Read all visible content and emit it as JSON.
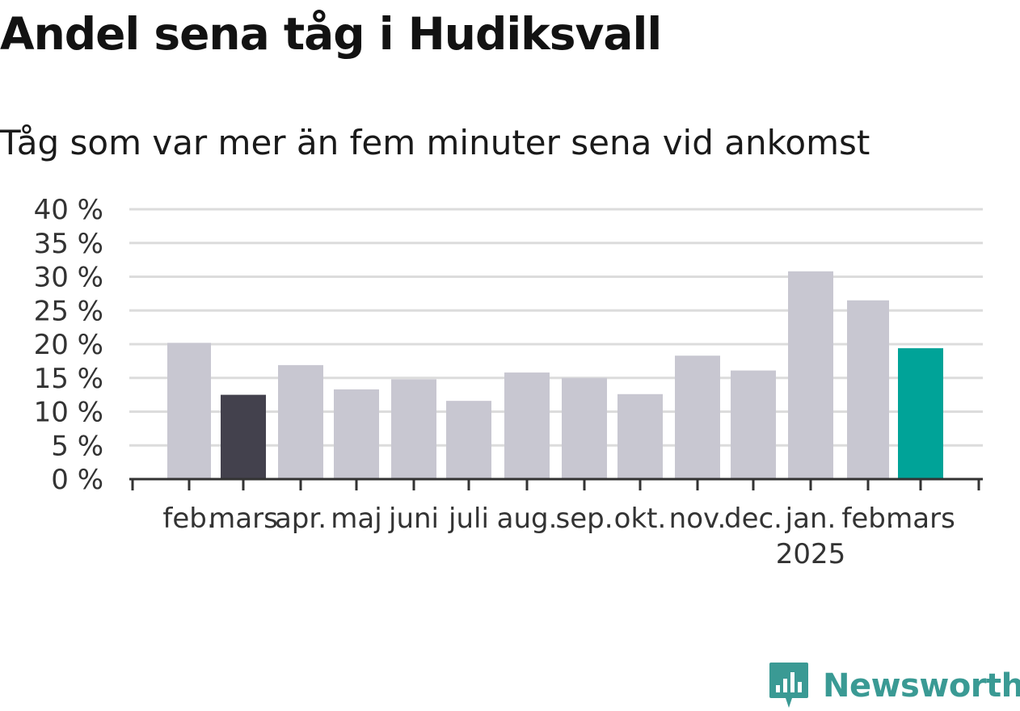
{
  "title": "Andel sena tåg i Hudiksvall",
  "subtitle": "Tåg som var mer än fem minuter sena vid ankomst",
  "logo_text": "Newsworthy",
  "colors": {
    "bar_default": "#c8c7d1",
    "bar_reference": "#43414d",
    "bar_current": "#00a398",
    "gridline": "#dcdcdc",
    "axis": "#333333",
    "logo": "#3a9a94"
  },
  "chart_data": {
    "type": "bar",
    "categories": [
      "feb.",
      "mars",
      "apr.",
      "maj",
      "juni",
      "juli",
      "aug.",
      "sep.",
      "okt.",
      "nov.",
      "dec.",
      "jan.",
      "feb.",
      "mars"
    ],
    "year_labels": [
      {
        "category_index": 11,
        "label": "2025"
      }
    ],
    "values": [
      20.2,
      12.5,
      16.9,
      13.3,
      14.8,
      11.6,
      15.8,
      15.0,
      12.6,
      18.3,
      16.1,
      30.8,
      26.5,
      19.4
    ],
    "highlight": [
      {
        "index": 1,
        "color": "#43414d"
      },
      {
        "index": 13,
        "color": "#00a398"
      }
    ],
    "y_ticks": [
      "0 %",
      "5 %",
      "10 %",
      "15 %",
      "20 %",
      "25 %",
      "30 %",
      "35 %",
      "40 %"
    ],
    "ylim": [
      0,
      40
    ],
    "grid": true,
    "xlabel": "",
    "ylabel": ""
  }
}
